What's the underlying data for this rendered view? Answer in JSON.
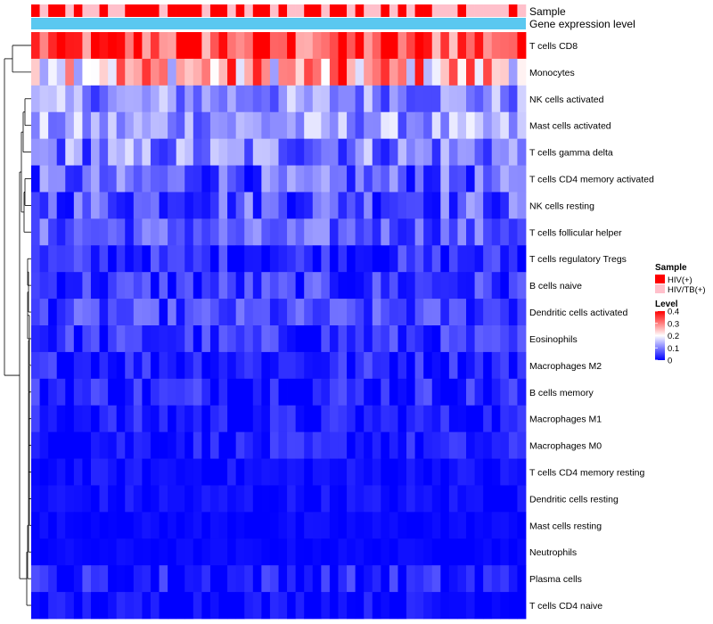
{
  "chart_data": {
    "type": "heatmap",
    "title": "",
    "annotation_tracks": [
      {
        "label": "Sample",
        "values": [
          1,
          0,
          1,
          1,
          0,
          1,
          0,
          0,
          1,
          0,
          0,
          1,
          1,
          1,
          1,
          0,
          1,
          1,
          1,
          1,
          0,
          1,
          1,
          0,
          1,
          0,
          1,
          1,
          0,
          1,
          0,
          0,
          1,
          1,
          0,
          1,
          1,
          0,
          1,
          0,
          0,
          1,
          0,
          1,
          0,
          1,
          1,
          0,
          0,
          0,
          1,
          0,
          0,
          0,
          0,
          0,
          1,
          0
        ]
      },
      {
        "label": "Gene expression level",
        "color": "#5bc8f0"
      }
    ],
    "rows": [
      "T cells CD8",
      "Monocytes",
      "NK cells activated",
      "Mast cells activated",
      "T cells gamma delta",
      "T cells CD4 memory activated",
      "NK cells resting",
      "T cells follicular helper",
      "T cells regulatory  Tregs",
      "B cells naive",
      "Dendritic cells activated",
      "Eosinophils",
      "Macrophages M2",
      "B cells memory",
      "Macrophages M1",
      "Macrophages M0",
      "T cells CD4 memory resting",
      "Dendritic cells resting",
      "Mast cells resting",
      "Neutrophils",
      "Plasma cells",
      "T cells CD4 naive"
    ],
    "row_means": [
      0.34,
      0.26,
      0.11,
      0.12,
      0.1,
      0.07,
      0.07,
      0.07,
      0.03,
      0.04,
      0.05,
      0.035,
      0.03,
      0.03,
      0.02,
      0.02,
      0.01,
      0.01,
      0.005,
      0.005,
      0.02,
      0.01
    ],
    "row_spread": [
      0.08,
      0.1,
      0.05,
      0.05,
      0.06,
      0.05,
      0.05,
      0.04,
      0.035,
      0.04,
      0.035,
      0.035,
      0.03,
      0.035,
      0.025,
      0.025,
      0.015,
      0.015,
      0.008,
      0.006,
      0.035,
      0.02
    ],
    "num_samples": 58,
    "color_scale": {
      "min": 0,
      "max": 0.4,
      "low": "#0000ff",
      "mid": "#ffffff",
      "high": "#ff0000",
      "mid_value": 0.2
    },
    "legend": {
      "sample_title": "Sample",
      "sample_items": [
        {
          "label": "HIV(+)",
          "color": "#ff0000"
        },
        {
          "label": "HIV/TB(+)",
          "color": "#ffc0cb"
        }
      ],
      "level_title": "Level",
      "level_ticks": [
        "0.4",
        "0.3",
        "0.2",
        "0.1",
        "0"
      ]
    }
  }
}
